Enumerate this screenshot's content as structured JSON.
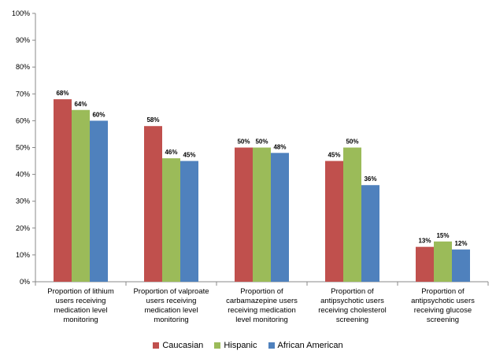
{
  "chart_data": {
    "type": "bar",
    "categories": [
      "Proportion of lithium users receiving medication level monitoring",
      "Proportion of valproate users receiving medication level monitoring",
      "Proportion of carbamazepine users receiving medication level monitoring",
      "Proportion of antipsychotic users receiving cholesterol screening",
      "Proportion of antipsychotic users receiving glucose screening"
    ],
    "series": [
      {
        "name": "Caucasian",
        "color": "#c0504d",
        "values": [
          68,
          58,
          50,
          45,
          13
        ],
        "value_labels": [
          "68%",
          "58%",
          "50%",
          "45%",
          "13%"
        ]
      },
      {
        "name": "Hispanic",
        "color": "#9bbb59",
        "values": [
          64,
          46,
          50,
          50,
          15
        ],
        "value_labels": [
          "64%",
          "46%",
          "50%",
          "50%",
          "15%"
        ]
      },
      {
        "name": "African American",
        "color": "#4f81bd",
        "values": [
          60,
          45,
          48,
          36,
          12
        ],
        "value_labels": [
          "60%",
          "45%",
          "48%",
          "36%",
          "12%"
        ]
      }
    ],
    "ylim": [
      0,
      100
    ],
    "yticks": [
      {
        "value": 0,
        "label": "0%"
      },
      {
        "value": 10,
        "label": "10%"
      },
      {
        "value": 20,
        "label": "20%"
      },
      {
        "value": 30,
        "label": "30%"
      },
      {
        "value": 40,
        "label": "40%"
      },
      {
        "value": 50,
        "label": "50%"
      },
      {
        "value": 60,
        "label": "60%"
      },
      {
        "value": 70,
        "label": "70%"
      },
      {
        "value": 80,
        "label": "80%"
      },
      {
        "value": 90,
        "label": "90%"
      },
      {
        "value": 100,
        "label": "100%"
      }
    ],
    "grid": false,
    "legend": "bottom"
  }
}
